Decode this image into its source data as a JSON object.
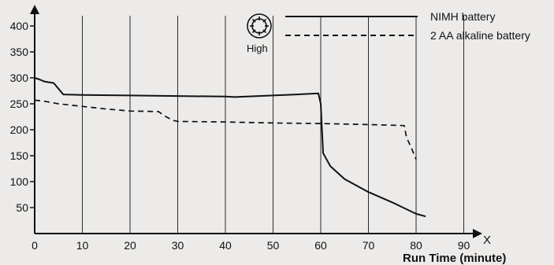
{
  "chart_data": {
    "type": "line",
    "x_ticks": [
      0,
      10,
      20,
      30,
      40,
      50,
      60,
      70,
      80,
      90
    ],
    "y_ticks": [
      50,
      100,
      150,
      200,
      250,
      300,
      350,
      400
    ],
    "xlim": [
      0,
      95
    ],
    "ylim": [
      0,
      420
    ],
    "grid": "vertical",
    "xlabel": "Run Time  (minute)",
    "x_axis_symbol": "X",
    "legend_placement": "top-right",
    "brightness_icon": "sun-icon",
    "brightness_label": "High",
    "series": [
      {
        "name": "NIMH battery",
        "style": "solid",
        "color": "#111111",
        "x": [
          0,
          1,
          2,
          4,
          6,
          10,
          20,
          30,
          40,
          42,
          50,
          55,
          59.5,
          60,
          60.5,
          62,
          65,
          70,
          75,
          80,
          82
        ],
        "y": [
          300,
          297,
          293,
          290,
          268,
          267,
          266,
          265,
          264,
          263,
          266,
          268,
          270,
          250,
          155,
          130,
          105,
          80,
          60,
          38,
          33
        ]
      },
      {
        "name": "2 AA alkaline battery",
        "style": "dashed",
        "color": "#111111",
        "x": [
          0,
          2,
          5,
          10,
          15,
          20,
          26,
          27,
          29,
          30,
          40,
          50,
          60,
          70,
          77.5,
          78,
          79,
          80
        ],
        "y": [
          257,
          255,
          250,
          245,
          240,
          236,
          235,
          228,
          218,
          216,
          215,
          213,
          212,
          210,
          208,
          185,
          165,
          143
        ]
      }
    ]
  }
}
